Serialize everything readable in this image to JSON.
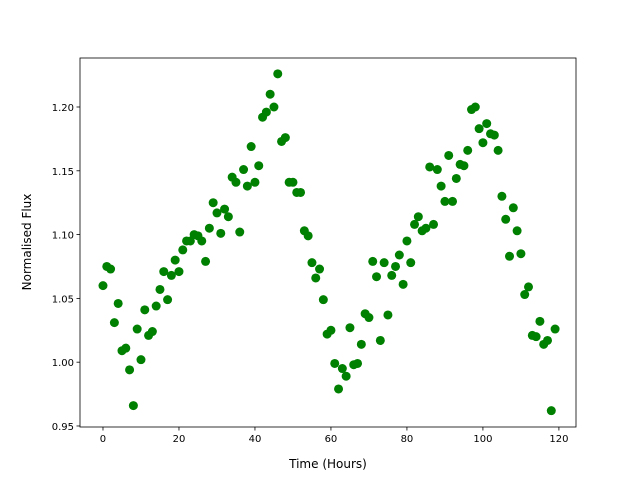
{
  "chart_data": {
    "type": "scatter",
    "title": "",
    "xlabel": "Time (Hours)",
    "ylabel": "Normalised Flux",
    "xlim": [
      -6.05,
      124.5
    ],
    "ylim": [
      0.9492,
      1.2384
    ],
    "xticks": [
      0,
      20,
      40,
      60,
      80,
      100,
      120
    ],
    "xtick_labels": [
      "0",
      "20",
      "40",
      "60",
      "80",
      "100",
      "120"
    ],
    "yticks": [
      0.95,
      1.0,
      1.05,
      1.1,
      1.15,
      1.2
    ],
    "ytick_labels": [
      "0.95",
      "1.00",
      "1.05",
      "1.10",
      "1.15",
      "1.20"
    ],
    "grid": false,
    "marker_color": "#008000",
    "series": [
      {
        "x": [
          0,
          1,
          2,
          3,
          4,
          5,
          6,
          7,
          8,
          9,
          10,
          11,
          12,
          13,
          14,
          15,
          16,
          17,
          18,
          19,
          20,
          21,
          22,
          23,
          24,
          25,
          26,
          27,
          28,
          29,
          30,
          31,
          32,
          33,
          34,
          35,
          36,
          37,
          38,
          39,
          40,
          41,
          42,
          43,
          44,
          45,
          46,
          47,
          48,
          49,
          50,
          51,
          52,
          53,
          54,
          55,
          56,
          57,
          58,
          59,
          60,
          61,
          62,
          63,
          64,
          65,
          66,
          67,
          68,
          69,
          70,
          71,
          72,
          73,
          74,
          75,
          76,
          77,
          78,
          79,
          80,
          81,
          82,
          83,
          84,
          85,
          86,
          87,
          88,
          89,
          90,
          91,
          92,
          93,
          94,
          95,
          96,
          97,
          98,
          99,
          100,
          101,
          102,
          103,
          104,
          105,
          106,
          107,
          108,
          109,
          110,
          111,
          112,
          113,
          114,
          115,
          116,
          117,
          118,
          119
        ],
        "y": [
          1.06,
          1.075,
          1.073,
          1.031,
          1.046,
          1.009,
          1.011,
          0.994,
          0.966,
          1.026,
          1.002,
          1.041,
          1.021,
          1.024,
          1.044,
          1.057,
          1.071,
          1.049,
          1.068,
          1.08,
          1.071,
          1.088,
          1.095,
          1.095,
          1.1,
          1.099,
          1.095,
          1.079,
          1.105,
          1.125,
          1.117,
          1.101,
          1.12,
          1.114,
          1.145,
          1.141,
          1.102,
          1.151,
          1.138,
          1.169,
          1.141,
          1.154,
          1.192,
          1.196,
          1.21,
          1.2,
          1.226,
          1.173,
          1.176,
          1.141,
          1.141,
          1.133,
          1.133,
          1.103,
          1.099,
          1.078,
          1.066,
          1.073,
          1.049,
          1.022,
          1.025,
          0.999,
          0.979,
          0.995,
          0.989,
          1.027,
          0.998,
          0.999,
          1.014,
          1.038,
          1.035,
          1.079,
          1.067,
          1.017,
          1.078,
          1.037,
          1.068,
          1.075,
          1.084,
          1.061,
          1.095,
          1.078,
          1.108,
          1.114,
          1.103,
          1.105,
          1.153,
          1.108,
          1.151,
          1.138,
          1.126,
          1.162,
          1.126,
          1.144,
          1.155,
          1.154,
          1.166,
          1.198,
          1.2,
          1.183,
          1.172,
          1.187,
          1.179,
          1.178,
          1.166,
          1.13,
          1.112,
          1.083,
          1.121,
          1.103,
          1.085,
          1.053,
          1.059,
          1.021,
          1.02,
          1.032,
          1.014,
          1.017,
          0.962,
          1.026
        ]
      }
    ]
  }
}
